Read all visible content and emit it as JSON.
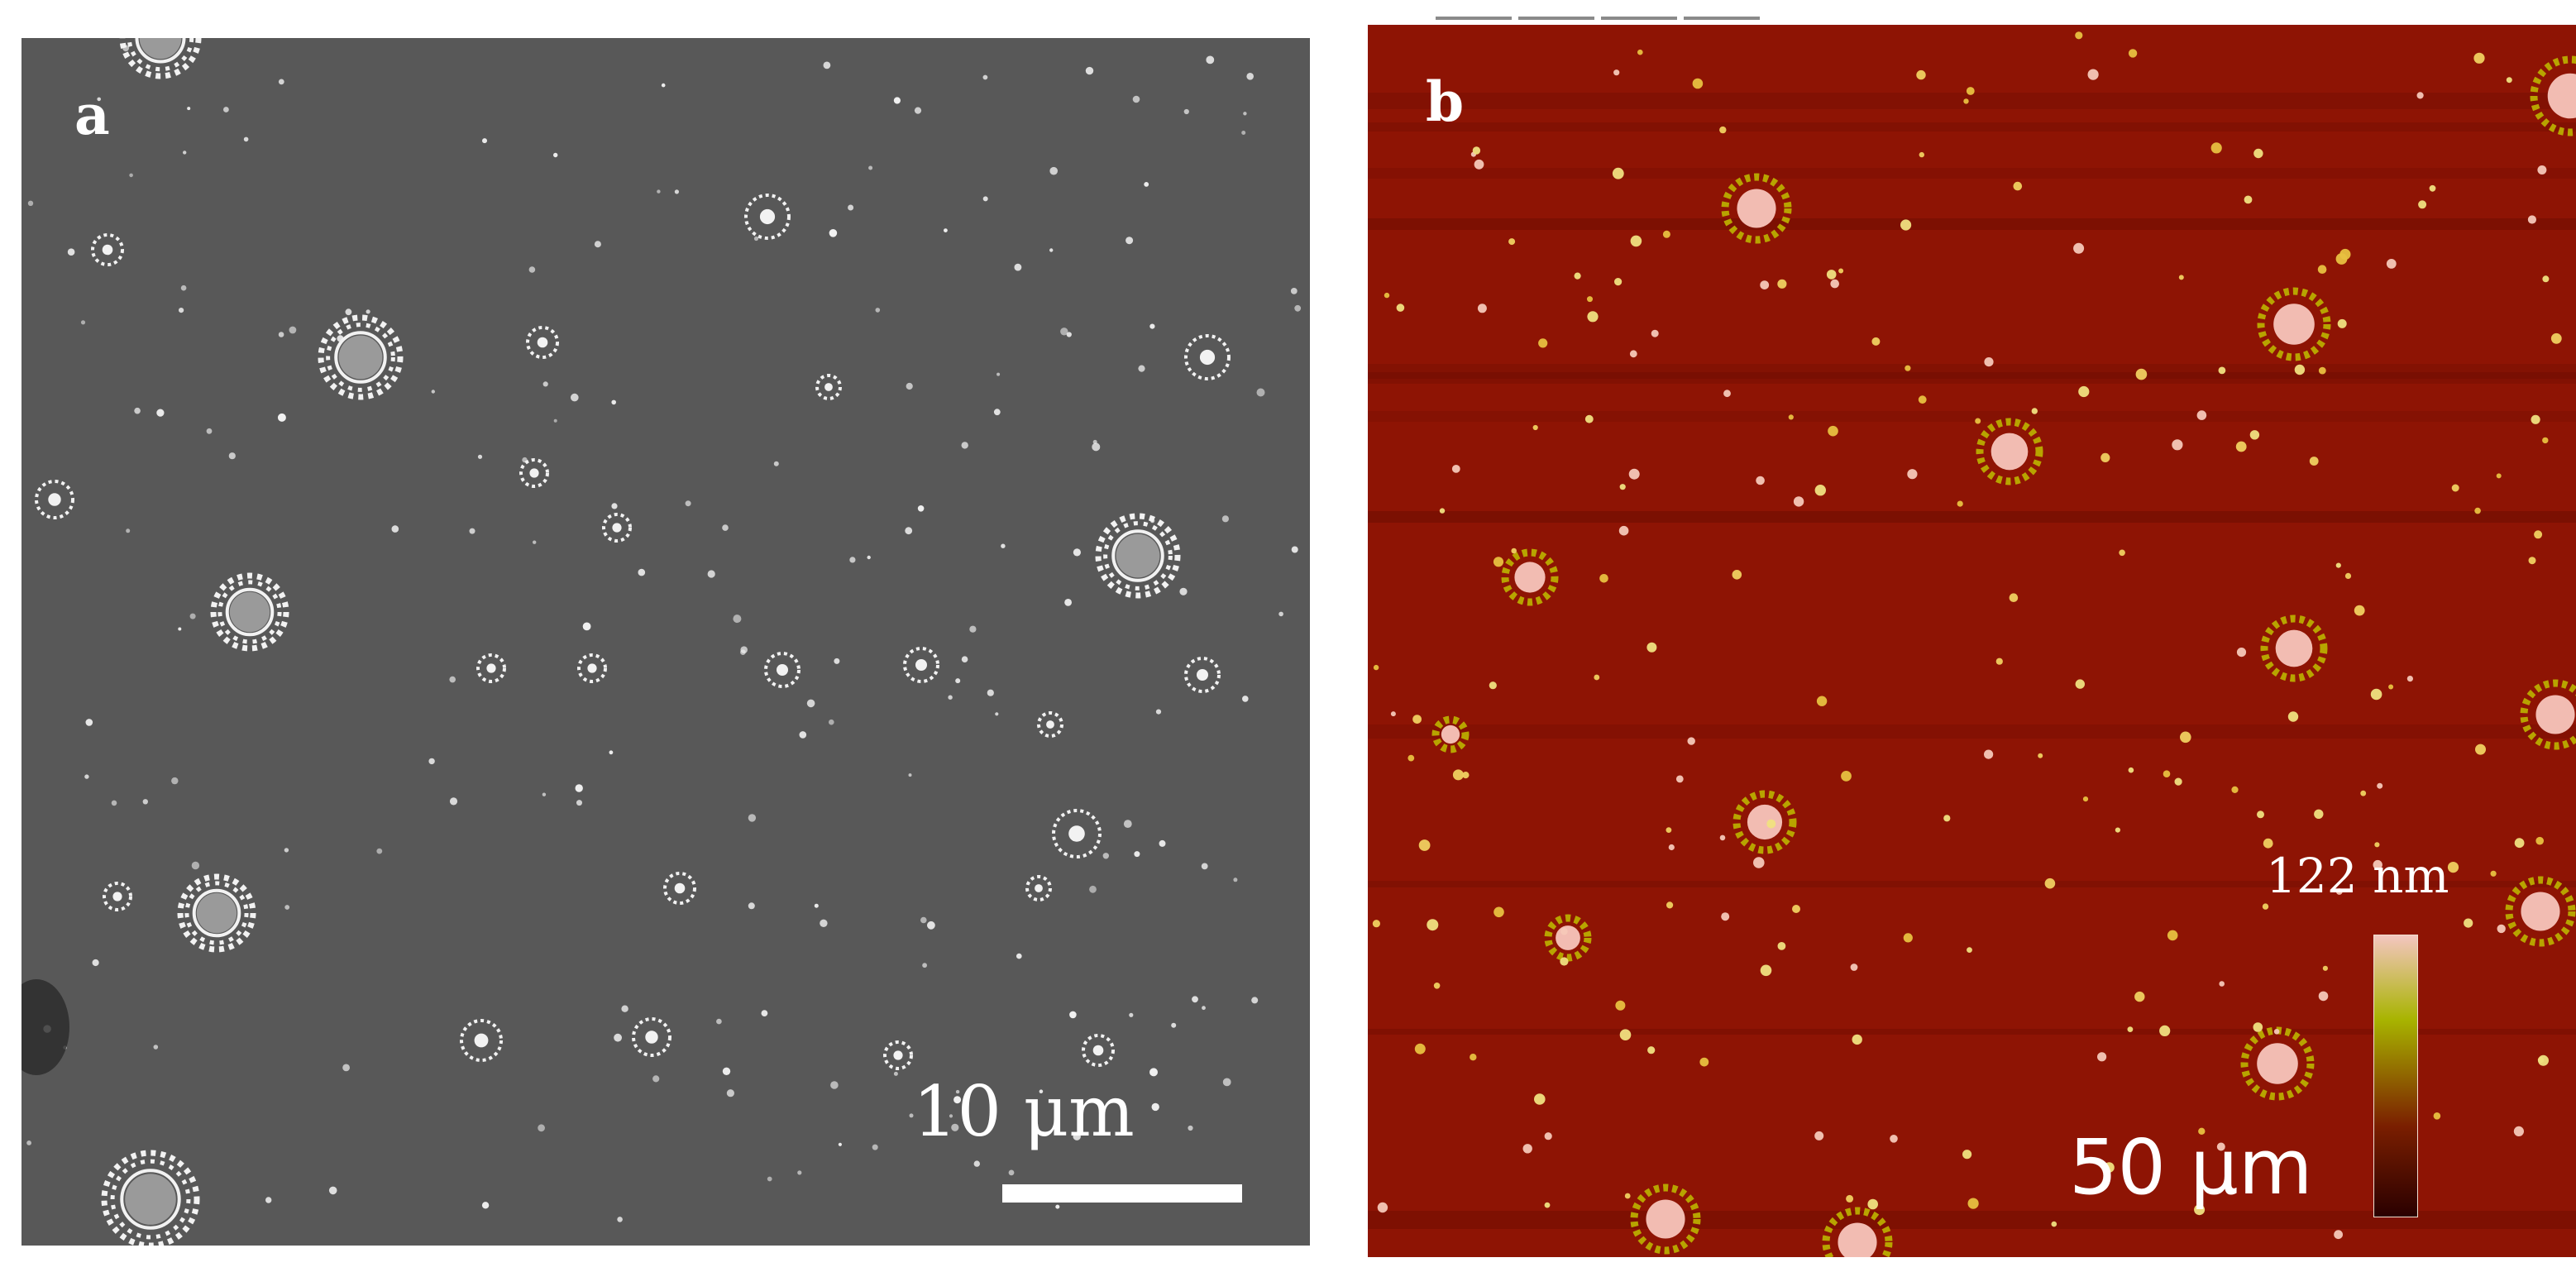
{
  "figure": {
    "panel_a": {
      "label": "a",
      "scale_bar_text": "10 μm",
      "background_color": "#585858",
      "feature_color": "#f2f2f2"
    },
    "panel_b": {
      "label": "b",
      "scale_bar_text": "50 μm",
      "colorbar_max_label": "122 nm",
      "background_color": "#8e1404",
      "colorbar_colors": [
        "#f4c6c0",
        "#a8b400",
        "#7a1e00",
        "#2a0000"
      ]
    }
  }
}
